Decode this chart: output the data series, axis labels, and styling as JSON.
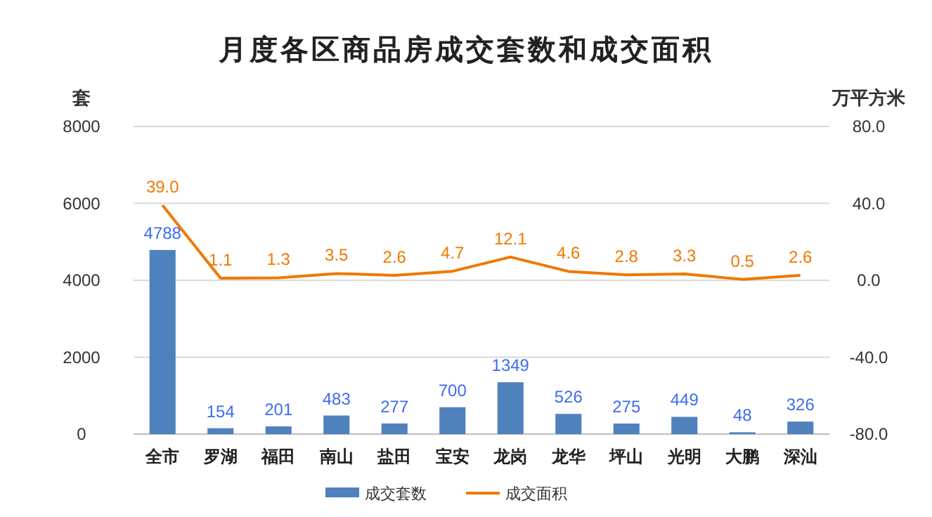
{
  "chart_data": {
    "type": "bar",
    "title": "月度各区商品房成交套数和成交面积",
    "ylabel": "套",
    "y2label": "万平方米",
    "categories": [
      "全市",
      "罗湖",
      "福田",
      "南山",
      "盐田",
      "宝安",
      "龙岗",
      "龙华",
      "坪山",
      "光明",
      "大鹏",
      "深汕"
    ],
    "series": [
      {
        "name": "成交套数",
        "color": "#4f81bd",
        "values": [
          4788,
          154,
          201,
          483,
          277,
          700,
          1349,
          526,
          275,
          449,
          48,
          326
        ]
      },
      {
        "name": "成交面积",
        "type": "line",
        "axis": "y2",
        "color": "#f07800",
        "values": [
          39.0,
          1.1,
          1.3,
          3.5,
          2.6,
          4.7,
          12.1,
          4.6,
          2.8,
          3.3,
          0.5,
          2.6
        ],
        "value_labels": [
          "39.0",
          "1.1",
          "1.3",
          "3.5",
          "2.6",
          "4.7",
          "12.1",
          "4.6",
          "2.8",
          "3.3",
          "0.5",
          "2.6"
        ]
      }
    ],
    "ylim": [
      0,
      8000
    ],
    "yticks": [
      0,
      2000,
      4000,
      6000,
      8000
    ],
    "y2lim": [
      -80,
      80
    ],
    "y2ticks": [
      {
        "value": -80,
        "label": "-80.0"
      },
      {
        "value": -40,
        "label": "-40.0"
      },
      {
        "value": 0,
        "label": "0.0"
      },
      {
        "value": 40,
        "label": "40.0"
      },
      {
        "value": 80,
        "label": "80.0"
      }
    ],
    "data_labels": true,
    "grid": "y",
    "legend": "bottom",
    "marker": "none",
    "line_style": "solid"
  }
}
